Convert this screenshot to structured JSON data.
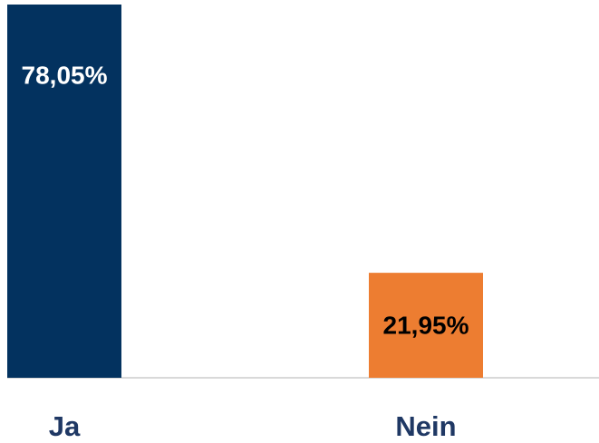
{
  "chart_data": {
    "type": "bar",
    "categories": [
      "Ja",
      "Nein"
    ],
    "values": [
      78.05,
      21.95
    ],
    "value_labels": [
      "78,05%",
      "21,95%"
    ],
    "colors": [
      "#03325f",
      "#ed7d31"
    ],
    "value_label_colors": [
      "#ffffff",
      "#000000"
    ]
  }
}
